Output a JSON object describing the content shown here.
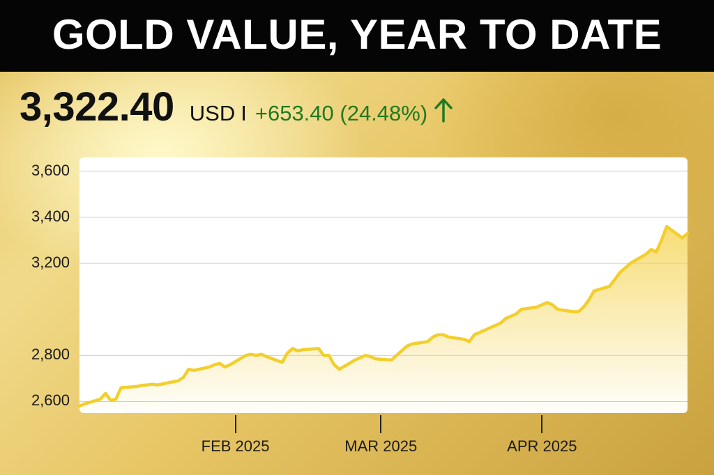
{
  "header": {
    "title": "GOLD VALUE, YEAR TO DATE"
  },
  "quote": {
    "price": "3,322.40",
    "currency": "USD",
    "separator": "I",
    "change": "+653.40 (24.48%)",
    "change_color": "#1f7a1f",
    "arrow_icon": "up-arrow-icon"
  },
  "chart_data": {
    "type": "area",
    "title": "GOLD VALUE, YEAR TO DATE",
    "xlabel": "",
    "ylabel": "",
    "ylim": [
      2550,
      3660
    ],
    "y_ticks": [
      {
        "value": 2600,
        "label": "2,600"
      },
      {
        "value": 2800,
        "label": "2,800"
      },
      {
        "value": 3200,
        "label": "3,200"
      },
      {
        "value": 3400,
        "label": "3,400"
      },
      {
        "value": 3600,
        "label": "3,600"
      }
    ],
    "xlim": [
      "2025-01-02",
      "2025-04-29"
    ],
    "x_ticks": [
      {
        "date": "2025-02-01",
        "label": "FEB 2025"
      },
      {
        "date": "2025-03-01",
        "label": "MAR 2025"
      },
      {
        "date": "2025-04-01",
        "label": "APR 2025"
      }
    ],
    "grid": true,
    "line_color": "#f2cf2c",
    "series": [
      {
        "x": [
          "2025-01-02",
          "2025-01-03",
          "2025-01-06",
          "2025-01-07",
          "2025-01-08",
          "2025-01-09",
          "2025-01-10",
          "2025-01-13",
          "2025-01-14",
          "2025-01-15",
          "2025-01-16",
          "2025-01-17",
          "2025-01-21",
          "2025-01-22",
          "2025-01-23",
          "2025-01-24",
          "2025-01-27",
          "2025-01-28",
          "2025-01-29",
          "2025-01-30",
          "2025-01-31",
          "2025-02-03",
          "2025-02-04",
          "2025-02-05",
          "2025-02-06",
          "2025-02-07",
          "2025-02-10",
          "2025-02-11",
          "2025-02-12",
          "2025-02-13",
          "2025-02-14",
          "2025-02-17",
          "2025-02-18",
          "2025-02-19",
          "2025-02-20",
          "2025-02-21",
          "2025-02-24",
          "2025-02-25",
          "2025-02-26",
          "2025-02-27",
          "2025-02-28",
          "2025-03-03",
          "2025-03-04",
          "2025-03-05",
          "2025-03-06",
          "2025-03-07",
          "2025-03-10",
          "2025-03-11",
          "2025-03-12",
          "2025-03-13",
          "2025-03-14",
          "2025-03-17",
          "2025-03-18",
          "2025-03-19",
          "2025-03-20",
          "2025-03-21",
          "2025-03-24",
          "2025-03-25",
          "2025-03-26",
          "2025-03-27",
          "2025-03-28",
          "2025-03-31",
          "2025-04-01",
          "2025-04-02",
          "2025-04-03",
          "2025-04-04",
          "2025-04-07",
          "2025-04-08",
          "2025-04-09",
          "2025-04-10",
          "2025-04-11",
          "2025-04-14",
          "2025-04-15",
          "2025-04-16",
          "2025-04-17",
          "2025-04-18",
          "2025-04-21",
          "2025-04-22",
          "2025-04-23",
          "2025-04-24",
          "2025-04-25",
          "2025-04-28",
          "2025-04-29"
        ],
        "y": [
          2580,
          2590,
          2610,
          2635,
          2605,
          2610,
          2660,
          2665,
          2670,
          2672,
          2675,
          2672,
          2690,
          2705,
          2740,
          2735,
          2750,
          2760,
          2765,
          2750,
          2760,
          2800,
          2805,
          2800,
          2805,
          2795,
          2770,
          2810,
          2830,
          2820,
          2825,
          2830,
          2800,
          2800,
          2760,
          2740,
          2780,
          2790,
          2800,
          2795,
          2785,
          2780,
          2800,
          2820,
          2840,
          2850,
          2860,
          2880,
          2890,
          2890,
          2880,
          2870,
          2860,
          2890,
          2900,
          2910,
          2940,
          2960,
          2970,
          2980,
          3000,
          3010,
          3020,
          3030,
          3020,
          3000,
          2990,
          2990,
          3010,
          3040,
          3080,
          3100,
          3130,
          3160,
          3180,
          3200,
          3240,
          3260,
          3250,
          3300,
          3360,
          3310,
          3330
        ]
      }
    ]
  }
}
